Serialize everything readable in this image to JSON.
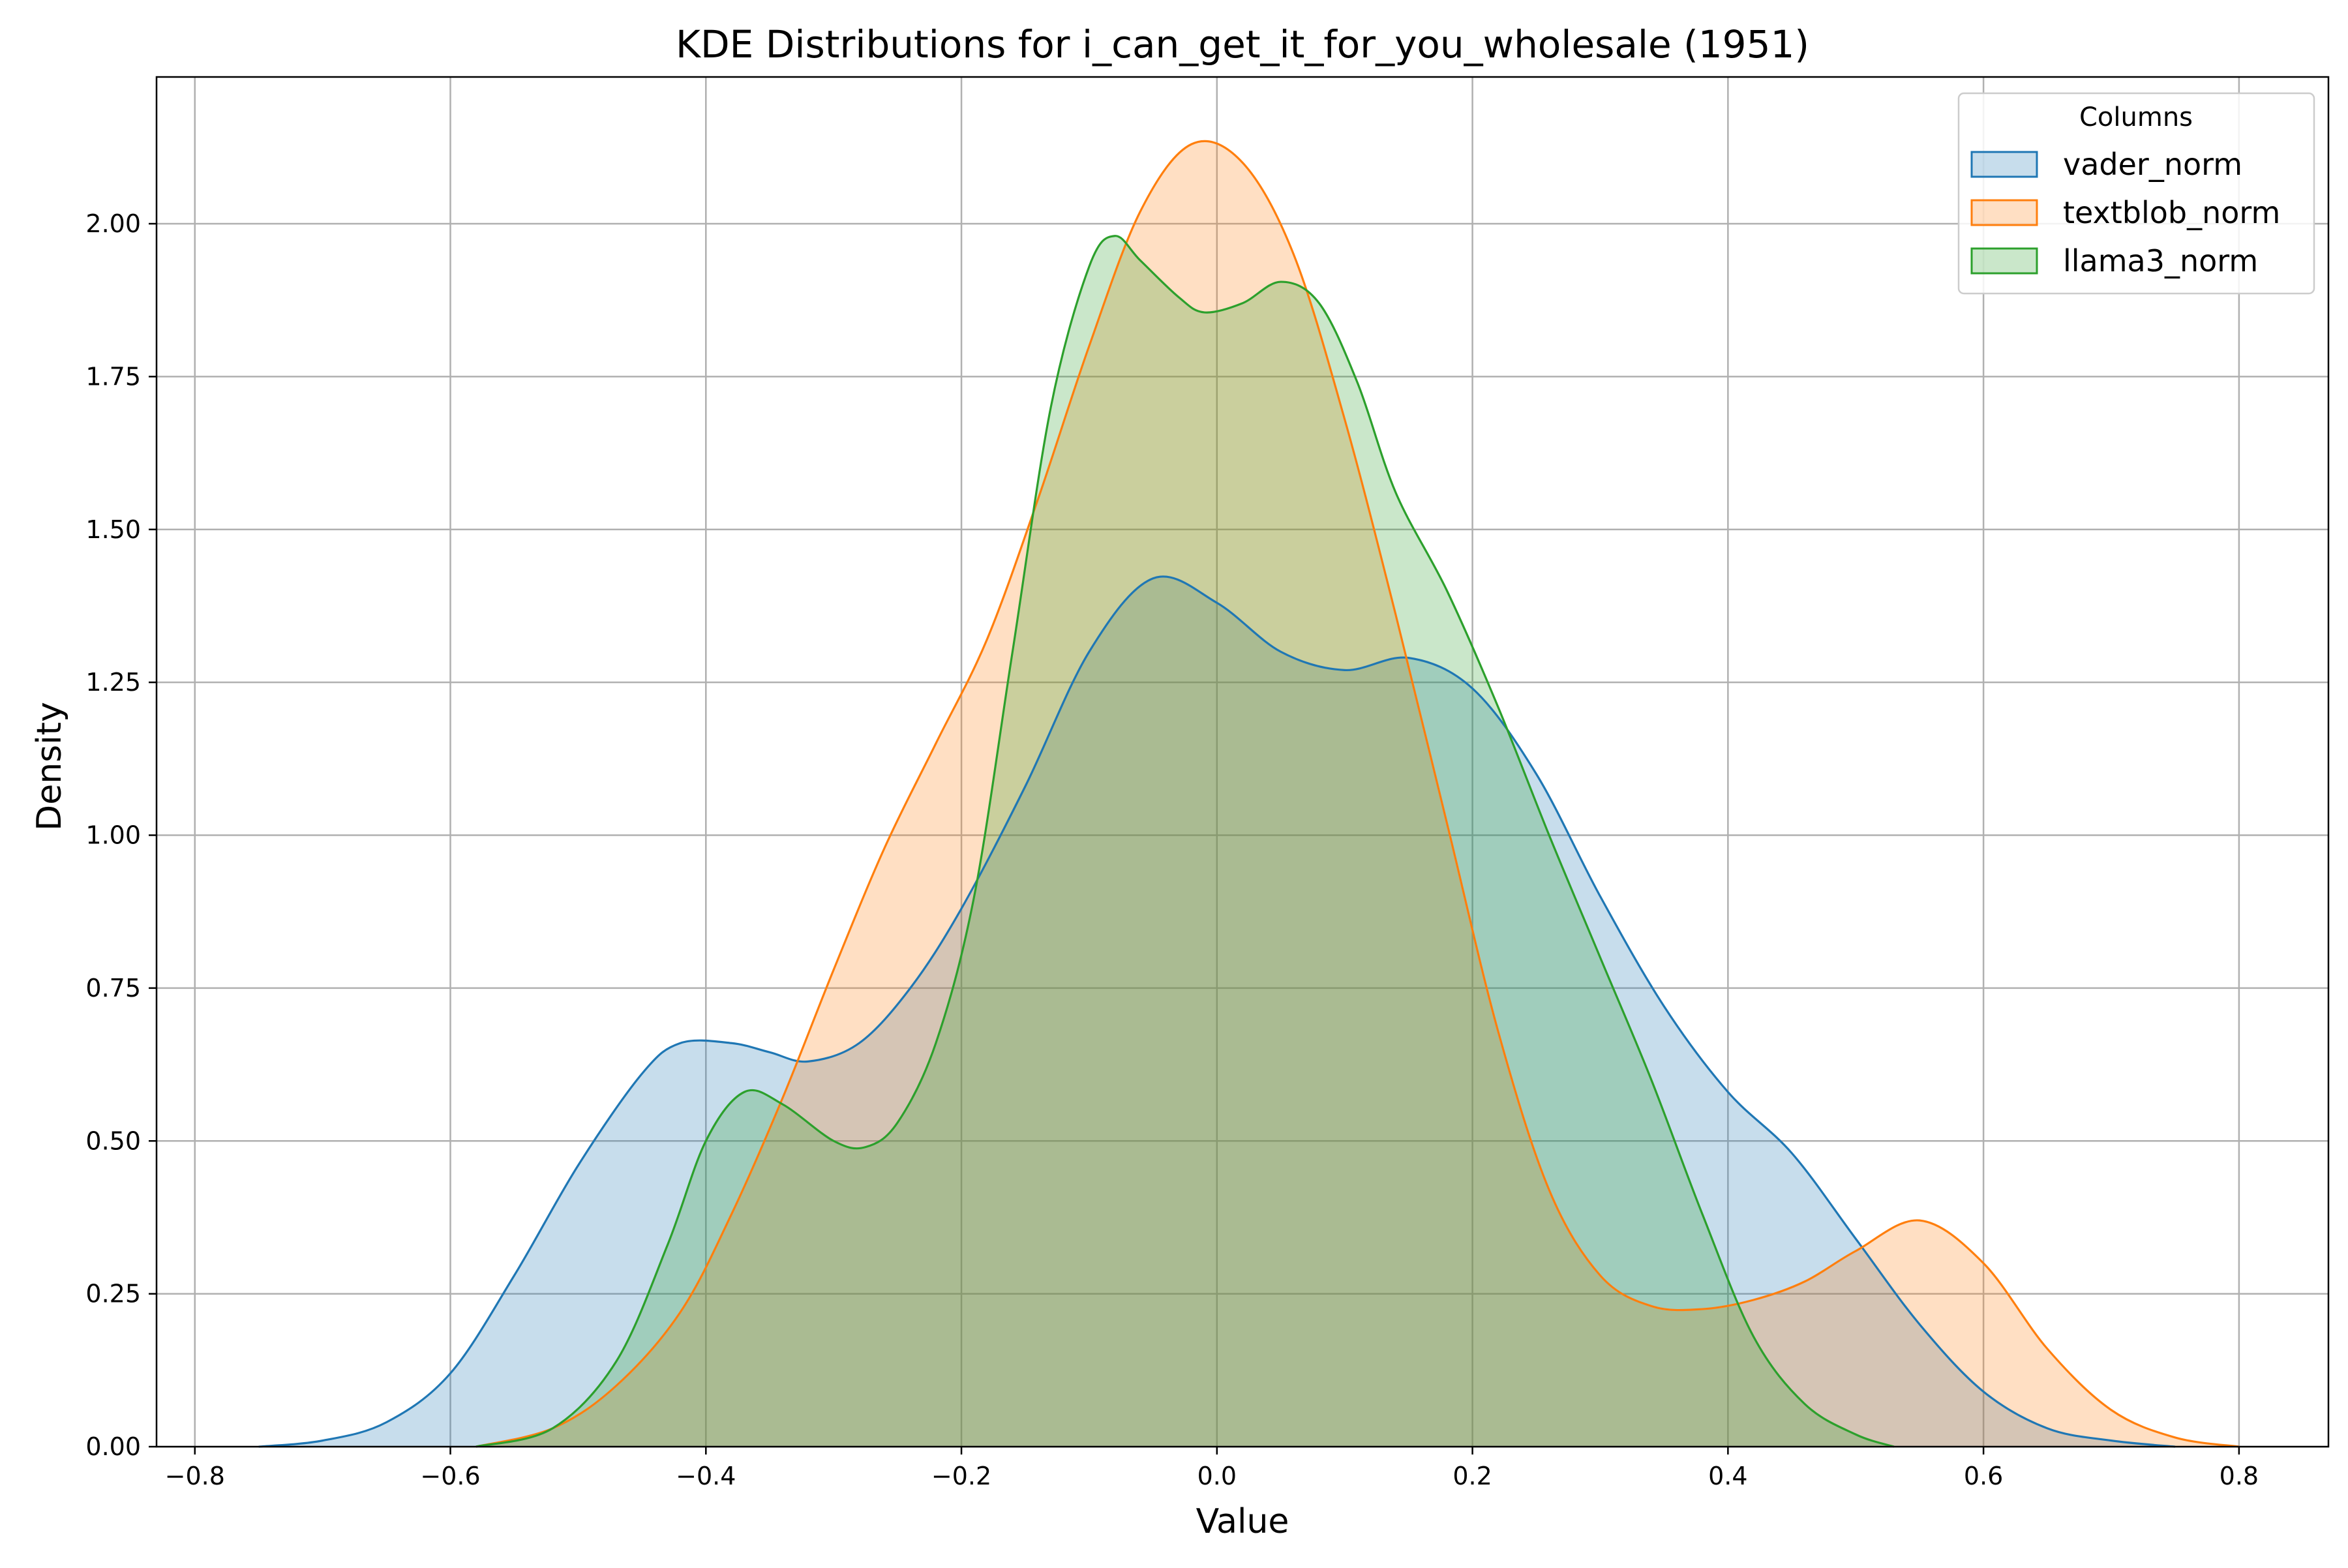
{
  "chart_data": {
    "type": "area",
    "title": "KDE Distributions for i_can_get_it_for_you_wholesale (1951)",
    "xlabel": "Value",
    "ylabel": "Density",
    "xlim": [
      -0.83,
      0.87
    ],
    "ylim": [
      0,
      2.24
    ],
    "x_ticks": [
      -0.8,
      -0.6,
      -0.4,
      -0.2,
      0.0,
      0.2,
      0.4,
      0.6,
      0.8
    ],
    "x_tick_labels": [
      "−0.8",
      "−0.6",
      "−0.4",
      "−0.2",
      "0.0",
      "0.2",
      "0.4",
      "0.6",
      "0.8"
    ],
    "y_ticks": [
      0.0,
      0.25,
      0.5,
      0.75,
      1.0,
      1.25,
      1.5,
      1.75,
      2.0
    ],
    "y_tick_labels": [
      "0.00",
      "0.25",
      "0.50",
      "0.75",
      "1.00",
      "1.25",
      "1.50",
      "1.75",
      "2.00"
    ],
    "grid": true,
    "legend": {
      "title": "Columns",
      "position": "top-right"
    },
    "series": [
      {
        "name": "vader_norm",
        "color": "#1f77b4",
        "points": [
          [
            -0.75,
            0.0
          ],
          [
            -0.7,
            0.01
          ],
          [
            -0.65,
            0.04
          ],
          [
            -0.6,
            0.12
          ],
          [
            -0.55,
            0.28
          ],
          [
            -0.5,
            0.46
          ],
          [
            -0.45,
            0.61
          ],
          [
            -0.42,
            0.66
          ],
          [
            -0.38,
            0.66
          ],
          [
            -0.35,
            0.645
          ],
          [
            -0.32,
            0.63
          ],
          [
            -0.28,
            0.66
          ],
          [
            -0.24,
            0.75
          ],
          [
            -0.2,
            0.88
          ],
          [
            -0.15,
            1.08
          ],
          [
            -0.1,
            1.3
          ],
          [
            -0.05,
            1.42
          ],
          [
            0.0,
            1.38
          ],
          [
            0.05,
            1.3
          ],
          [
            0.1,
            1.27
          ],
          [
            0.15,
            1.29
          ],
          [
            0.2,
            1.24
          ],
          [
            0.25,
            1.1
          ],
          [
            0.3,
            0.9
          ],
          [
            0.35,
            0.72
          ],
          [
            0.4,
            0.58
          ],
          [
            0.45,
            0.48
          ],
          [
            0.5,
            0.34
          ],
          [
            0.55,
            0.2
          ],
          [
            0.6,
            0.09
          ],
          [
            0.65,
            0.03
          ],
          [
            0.7,
            0.01
          ],
          [
            0.75,
            0.0
          ]
        ]
      },
      {
        "name": "textblob_norm",
        "color": "#ff7f0e",
        "points": [
          [
            -0.58,
            0.0
          ],
          [
            -0.52,
            0.03
          ],
          [
            -0.47,
            0.1
          ],
          [
            -0.42,
            0.22
          ],
          [
            -0.38,
            0.38
          ],
          [
            -0.34,
            0.57
          ],
          [
            -0.3,
            0.78
          ],
          [
            -0.26,
            0.98
          ],
          [
            -0.22,
            1.15
          ],
          [
            -0.18,
            1.32
          ],
          [
            -0.14,
            1.55
          ],
          [
            -0.1,
            1.8
          ],
          [
            -0.06,
            2.02
          ],
          [
            -0.02,
            2.13
          ],
          [
            0.02,
            2.1
          ],
          [
            0.06,
            1.95
          ],
          [
            0.1,
            1.68
          ],
          [
            0.14,
            1.36
          ],
          [
            0.18,
            1.02
          ],
          [
            0.22,
            0.68
          ],
          [
            0.26,
            0.42
          ],
          [
            0.3,
            0.28
          ],
          [
            0.34,
            0.23
          ],
          [
            0.38,
            0.225
          ],
          [
            0.42,
            0.24
          ],
          [
            0.46,
            0.27
          ],
          [
            0.5,
            0.32
          ],
          [
            0.55,
            0.37
          ],
          [
            0.6,
            0.3
          ],
          [
            0.65,
            0.16
          ],
          [
            0.7,
            0.06
          ],
          [
            0.75,
            0.015
          ],
          [
            0.8,
            0.0
          ]
        ]
      },
      {
        "name": "llama3_norm",
        "color": "#2ca02c",
        "points": [
          [
            -0.58,
            0.0
          ],
          [
            -0.52,
            0.03
          ],
          [
            -0.47,
            0.14
          ],
          [
            -0.43,
            0.33
          ],
          [
            -0.4,
            0.5
          ],
          [
            -0.37,
            0.58
          ],
          [
            -0.34,
            0.56
          ],
          [
            -0.3,
            0.5
          ],
          [
            -0.275,
            0.49
          ],
          [
            -0.25,
            0.53
          ],
          [
            -0.22,
            0.66
          ],
          [
            -0.19,
            0.9
          ],
          [
            -0.16,
            1.3
          ],
          [
            -0.13,
            1.7
          ],
          [
            -0.1,
            1.93
          ],
          [
            -0.08,
            1.98
          ],
          [
            -0.06,
            1.94
          ],
          [
            -0.03,
            1.88
          ],
          [
            -0.01,
            1.855
          ],
          [
            0.02,
            1.87
          ],
          [
            0.05,
            1.905
          ],
          [
            0.08,
            1.87
          ],
          [
            0.11,
            1.74
          ],
          [
            0.14,
            1.56
          ],
          [
            0.18,
            1.4
          ],
          [
            0.22,
            1.21
          ],
          [
            0.26,
            1.0
          ],
          [
            0.3,
            0.8
          ],
          [
            0.34,
            0.6
          ],
          [
            0.38,
            0.38
          ],
          [
            0.42,
            0.18
          ],
          [
            0.46,
            0.07
          ],
          [
            0.5,
            0.02
          ],
          [
            0.53,
            0.0
          ]
        ]
      }
    ]
  }
}
